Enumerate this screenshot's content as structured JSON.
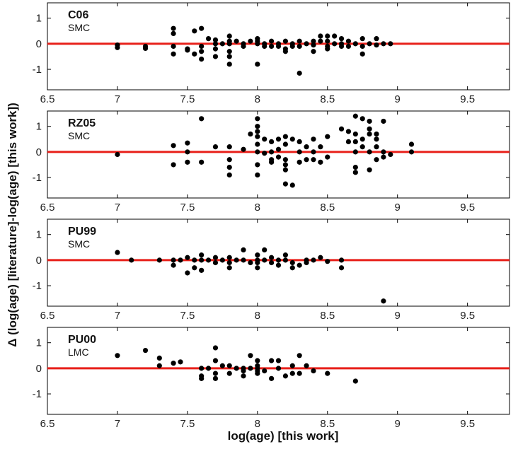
{
  "chart_data": {
    "type": "scatter",
    "xlabel": "log(age) [this work]",
    "ylabel": "Δ (log(age) [literature]-log(age) [this work])",
    "xlim": [
      6.5,
      9.8
    ],
    "ylim": [
      -1.8,
      1.6
    ],
    "xticks": [
      "6.5",
      "7",
      "7.5",
      "8",
      "8.5",
      "9",
      "9.5"
    ],
    "yticks": [
      "1",
      "0",
      "-1"
    ],
    "reference_line": {
      "y": 0,
      "color": "#e8201a"
    },
    "marker_color": "#000000",
    "panels": [
      {
        "title": "C06",
        "subtitle": "SMC",
        "points": [
          [
            7.0,
            -0.05
          ],
          [
            7.0,
            -0.15
          ],
          [
            7.2,
            -0.1
          ],
          [
            7.2,
            -0.18
          ],
          [
            7.4,
            0.6
          ],
          [
            7.4,
            0.4
          ],
          [
            7.4,
            -0.1
          ],
          [
            7.4,
            -0.4
          ],
          [
            7.5,
            -0.2
          ],
          [
            7.5,
            -0.25
          ],
          [
            7.55,
            0.5
          ],
          [
            7.55,
            -0.4
          ],
          [
            7.6,
            0.6
          ],
          [
            7.6,
            -0.1
          ],
          [
            7.6,
            -0.3
          ],
          [
            7.6,
            -0.6
          ],
          [
            7.65,
            0.2
          ],
          [
            7.7,
            0.15
          ],
          [
            7.7,
            0.0
          ],
          [
            7.7,
            -0.2
          ],
          [
            7.7,
            -0.5
          ],
          [
            7.75,
            0.0
          ],
          [
            7.8,
            0.3
          ],
          [
            7.8,
            0.1
          ],
          [
            7.8,
            0.0
          ],
          [
            7.8,
            -0.3
          ],
          [
            7.8,
            -0.5
          ],
          [
            7.8,
            -0.8
          ],
          [
            7.85,
            0.1
          ],
          [
            7.9,
            0.0
          ],
          [
            7.9,
            -0.1
          ],
          [
            7.95,
            0.1
          ],
          [
            8.0,
            0.2
          ],
          [
            8.0,
            0.1
          ],
          [
            8.0,
            0.0
          ],
          [
            8.0,
            -0.8
          ],
          [
            8.05,
            0.0
          ],
          [
            8.05,
            -0.1
          ],
          [
            8.1,
            0.1
          ],
          [
            8.1,
            -0.1
          ],
          [
            8.15,
            0.0
          ],
          [
            8.15,
            -0.1
          ],
          [
            8.2,
            0.1
          ],
          [
            8.2,
            -0.2
          ],
          [
            8.2,
            -0.3
          ],
          [
            8.25,
            0.0
          ],
          [
            8.25,
            -0.1
          ],
          [
            8.3,
            0.1
          ],
          [
            8.3,
            -0.1
          ],
          [
            8.3,
            -1.15
          ],
          [
            8.35,
            0.0
          ],
          [
            8.4,
            0.1
          ],
          [
            8.4,
            -0.05
          ],
          [
            8.4,
            -0.3
          ],
          [
            8.45,
            0.3
          ],
          [
            8.45,
            0.1
          ],
          [
            8.5,
            0.3
          ],
          [
            8.5,
            0.1
          ],
          [
            8.5,
            -0.1
          ],
          [
            8.5,
            -0.2
          ],
          [
            8.55,
            0.3
          ],
          [
            8.55,
            0.0
          ],
          [
            8.6,
            0.2
          ],
          [
            8.6,
            0.0
          ],
          [
            8.6,
            -0.1
          ],
          [
            8.65,
            0.1
          ],
          [
            8.65,
            -0.1
          ],
          [
            8.7,
            0.0
          ],
          [
            8.75,
            0.2
          ],
          [
            8.75,
            -0.1
          ],
          [
            8.75,
            -0.4
          ],
          [
            8.8,
            0.0
          ],
          [
            8.85,
            0.2
          ],
          [
            8.85,
            -0.05
          ],
          [
            8.9,
            0.0
          ],
          [
            8.95,
            0.0
          ]
        ]
      },
      {
        "title": "RZ05",
        "subtitle": "SMC",
        "points": [
          [
            7.0,
            -0.1
          ],
          [
            7.4,
            0.25
          ],
          [
            7.4,
            -0.5
          ],
          [
            7.5,
            0.35
          ],
          [
            7.5,
            0.0
          ],
          [
            7.5,
            -0.4
          ],
          [
            7.6,
            1.3
          ],
          [
            7.6,
            -0.4
          ],
          [
            7.7,
            0.2
          ],
          [
            7.8,
            0.2
          ],
          [
            7.8,
            -0.3
          ],
          [
            7.8,
            -0.6
          ],
          [
            7.8,
            -0.9
          ],
          [
            7.9,
            0.1
          ],
          [
            7.95,
            0.7
          ],
          [
            8.0,
            1.3
          ],
          [
            8.0,
            1.0
          ],
          [
            8.0,
            0.8
          ],
          [
            8.0,
            0.6
          ],
          [
            8.0,
            0.3
          ],
          [
            8.0,
            0.0
          ],
          [
            8.0,
            -0.5
          ],
          [
            8.0,
            -0.9
          ],
          [
            8.05,
            0.5
          ],
          [
            8.05,
            -0.05
          ],
          [
            8.1,
            0.4
          ],
          [
            8.1,
            0.0
          ],
          [
            8.1,
            -0.3
          ],
          [
            8.1,
            -0.4
          ],
          [
            8.15,
            0.5
          ],
          [
            8.15,
            0.1
          ],
          [
            8.15,
            -0.2
          ],
          [
            8.2,
            0.6
          ],
          [
            8.2,
            0.3
          ],
          [
            8.2,
            -0.3
          ],
          [
            8.2,
            -0.5
          ],
          [
            8.2,
            -0.7
          ],
          [
            8.2,
            -1.25
          ],
          [
            8.25,
            0.5
          ],
          [
            8.25,
            -1.3
          ],
          [
            8.3,
            0.4
          ],
          [
            8.3,
            0.0
          ],
          [
            8.3,
            -0.4
          ],
          [
            8.35,
            0.2
          ],
          [
            8.35,
            -0.3
          ],
          [
            8.4,
            0.5
          ],
          [
            8.4,
            0.0
          ],
          [
            8.4,
            -0.3
          ],
          [
            8.45,
            0.2
          ],
          [
            8.45,
            -0.4
          ],
          [
            8.5,
            0.6
          ],
          [
            8.5,
            -0.2
          ],
          [
            8.6,
            0.9
          ],
          [
            8.65,
            0.8
          ],
          [
            8.65,
            0.4
          ],
          [
            8.7,
            1.4
          ],
          [
            8.7,
            0.7
          ],
          [
            8.7,
            0.4
          ],
          [
            8.7,
            0.0
          ],
          [
            8.7,
            -0.6
          ],
          [
            8.7,
            -0.8
          ],
          [
            8.75,
            1.3
          ],
          [
            8.75,
            0.5
          ],
          [
            8.75,
            0.2
          ],
          [
            8.8,
            1.2
          ],
          [
            8.8,
            0.9
          ],
          [
            8.8,
            0.7
          ],
          [
            8.8,
            0.0
          ],
          [
            8.8,
            -0.7
          ],
          [
            8.85,
            0.7
          ],
          [
            8.85,
            0.5
          ],
          [
            8.85,
            0.2
          ],
          [
            8.85,
            -0.3
          ],
          [
            8.9,
            0.0
          ],
          [
            8.9,
            -0.2
          ],
          [
            8.9,
            1.2
          ],
          [
            8.95,
            -0.1
          ],
          [
            9.1,
            0.3
          ],
          [
            9.1,
            0.0
          ]
        ]
      },
      {
        "title": "PU99",
        "subtitle": "SMC",
        "points": [
          [
            7.0,
            0.3
          ],
          [
            7.1,
            0.0
          ],
          [
            7.3,
            0.0
          ],
          [
            7.4,
            0.0
          ],
          [
            7.4,
            -0.2
          ],
          [
            7.45,
            0.0
          ],
          [
            7.5,
            0.1
          ],
          [
            7.5,
            -0.5
          ],
          [
            7.55,
            0.0
          ],
          [
            7.55,
            -0.3
          ],
          [
            7.6,
            0.2
          ],
          [
            7.6,
            0.0
          ],
          [
            7.6,
            -0.4
          ],
          [
            7.65,
            0.0
          ],
          [
            7.7,
            0.1
          ],
          [
            7.7,
            -0.1
          ],
          [
            7.75,
            0.0
          ],
          [
            7.8,
            0.1
          ],
          [
            7.8,
            -0.1
          ],
          [
            7.8,
            -0.3
          ],
          [
            7.85,
            0.0
          ],
          [
            7.9,
            0.4
          ],
          [
            7.9,
            0.0
          ],
          [
            7.95,
            -0.1
          ],
          [
            8.0,
            0.2
          ],
          [
            8.0,
            0.0
          ],
          [
            8.0,
            -0.1
          ],
          [
            8.0,
            -0.3
          ],
          [
            8.05,
            0.4
          ],
          [
            8.05,
            0.0
          ],
          [
            8.1,
            0.1
          ],
          [
            8.1,
            -0.1
          ],
          [
            8.15,
            0.0
          ],
          [
            8.15,
            -0.2
          ],
          [
            8.2,
            0.2
          ],
          [
            8.2,
            0.0
          ],
          [
            8.25,
            -0.1
          ],
          [
            8.25,
            -0.3
          ],
          [
            8.3,
            -0.2
          ],
          [
            8.35,
            0.0
          ],
          [
            8.35,
            -0.1
          ],
          [
            8.4,
            0.0
          ],
          [
            8.45,
            0.1
          ],
          [
            8.5,
            -0.05
          ],
          [
            8.6,
            0.0
          ],
          [
            8.6,
            -0.3
          ],
          [
            8.9,
            -1.6
          ]
        ]
      },
      {
        "title": "PU00",
        "subtitle": "LMC",
        "points": [
          [
            7.0,
            0.5
          ],
          [
            7.2,
            0.7
          ],
          [
            7.3,
            0.4
          ],
          [
            7.3,
            0.1
          ],
          [
            7.4,
            0.2
          ],
          [
            7.45,
            0.25
          ],
          [
            7.6,
            0.0
          ],
          [
            7.6,
            -0.4
          ],
          [
            7.6,
            -0.3
          ],
          [
            7.65,
            0.0
          ],
          [
            7.7,
            0.8
          ],
          [
            7.7,
            0.3
          ],
          [
            7.7,
            -0.2
          ],
          [
            7.7,
            -0.4
          ],
          [
            7.75,
            0.1
          ],
          [
            7.8,
            0.1
          ],
          [
            7.8,
            -0.2
          ],
          [
            7.85,
            0.0
          ],
          [
            7.9,
            0.0
          ],
          [
            7.9,
            -0.1
          ],
          [
            7.9,
            -0.3
          ],
          [
            7.95,
            0.5
          ],
          [
            7.95,
            0.0
          ],
          [
            8.0,
            0.3
          ],
          [
            8.0,
            0.1
          ],
          [
            8.0,
            0.0
          ],
          [
            8.0,
            -0.1
          ],
          [
            8.0,
            -0.2
          ],
          [
            8.05,
            -0.1
          ],
          [
            8.1,
            0.3
          ],
          [
            8.1,
            -0.4
          ],
          [
            8.15,
            0.3
          ],
          [
            8.15,
            0.0
          ],
          [
            8.2,
            -0.3
          ],
          [
            8.25,
            0.1
          ],
          [
            8.25,
            -0.2
          ],
          [
            8.3,
            0.5
          ],
          [
            8.3,
            -0.2
          ],
          [
            8.35,
            0.1
          ],
          [
            8.4,
            -0.1
          ],
          [
            8.5,
            -0.2
          ],
          [
            8.7,
            -0.5
          ]
        ]
      }
    ]
  }
}
